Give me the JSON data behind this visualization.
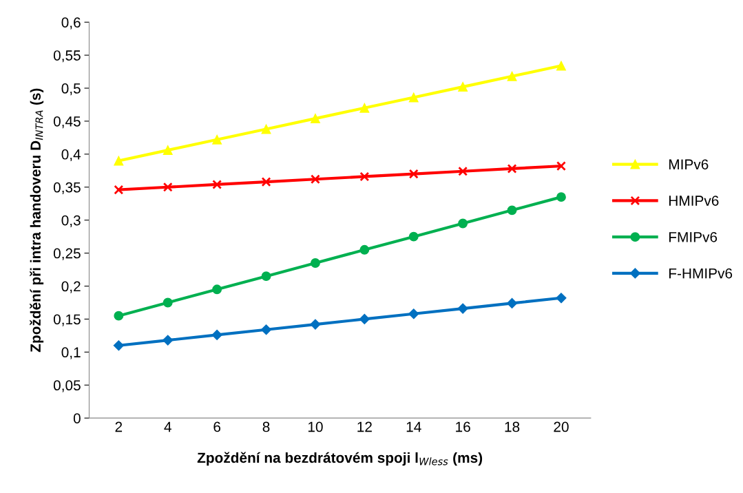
{
  "chart_data": {
    "type": "line",
    "xlabel": "Zpoždění na bezdrátovém spoji l$_{Wless}$ (ms)",
    "ylabel": "Zpoždění při intra handoveru D$_{INTRA}$ (s)",
    "categories": [
      "2",
      "4",
      "6",
      "8",
      "10",
      "12",
      "14",
      "16",
      "18",
      "20"
    ],
    "series": [
      {
        "name": "MIPv6",
        "color": "#ffff00",
        "marker": "triangle",
        "values": [
          0.39,
          0.406,
          0.422,
          0.438,
          0.454,
          0.47,
          0.486,
          0.502,
          0.518,
          0.534
        ]
      },
      {
        "name": "HMIPv6",
        "color": "#ff0000",
        "marker": "cross",
        "values": [
          0.346,
          0.35,
          0.354,
          0.358,
          0.362,
          0.366,
          0.37,
          0.374,
          0.378,
          0.382
        ]
      },
      {
        "name": "FMIPv6",
        "color": "#00b050",
        "marker": "circle",
        "values": [
          0.155,
          0.175,
          0.195,
          0.215,
          0.235,
          0.255,
          0.275,
          0.295,
          0.315,
          0.335
        ]
      },
      {
        "name": "F-HMIPv6",
        "color": "#0070c0",
        "marker": "diamond",
        "values": [
          0.11,
          0.118,
          0.126,
          0.134,
          0.142,
          0.15,
          0.158,
          0.166,
          0.174,
          0.182
        ]
      }
    ],
    "ylim": [
      0,
      0.6
    ],
    "yticks": [
      {
        "value": 0,
        "label": "0"
      },
      {
        "value": 0.05,
        "label": "0,05"
      },
      {
        "value": 0.1,
        "label": "0,1"
      },
      {
        "value": 0.15,
        "label": "0,15"
      },
      {
        "value": 0.2,
        "label": "0,2"
      },
      {
        "value": 0.25,
        "label": "0,25"
      },
      {
        "value": 0.3,
        "label": "0,3"
      },
      {
        "value": 0.35,
        "label": "0,35"
      },
      {
        "value": 0.4,
        "label": "0,4"
      },
      {
        "value": 0.45,
        "label": "0,45"
      },
      {
        "value": 0.5,
        "label": "0,5"
      },
      {
        "value": 0.55,
        "label": "0,55"
      },
      {
        "value": 0.6,
        "label": "0,6"
      }
    ],
    "grid": false,
    "legend": "right",
    "line_style": "solid"
  }
}
